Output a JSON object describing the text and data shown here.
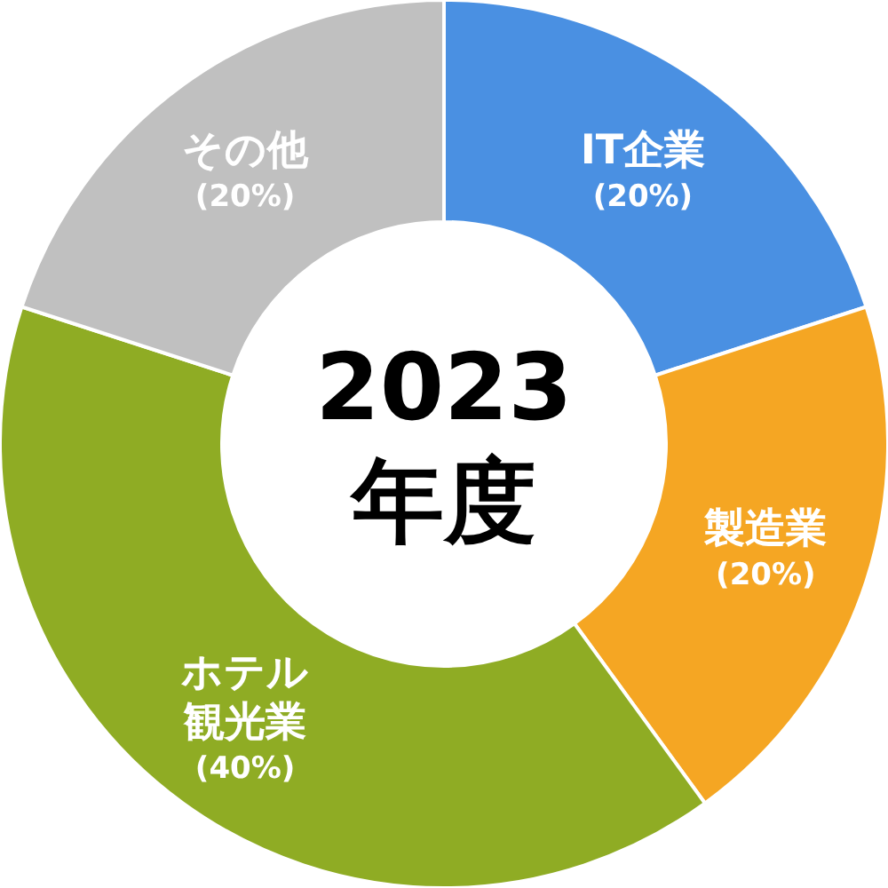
{
  "chart_data": {
    "type": "donut",
    "title": "2023\n年度",
    "categories": [
      "IT企業",
      "製造業",
      "ホテル観光業",
      "その他"
    ],
    "values": [
      20,
      20,
      40,
      20
    ],
    "colors": [
      "#4a90e2",
      "#f5a623",
      "#8fac24",
      "#c0c0c0"
    ],
    "value_labels": [
      "(20%)",
      "(20%)",
      "(40%)",
      "(20%)"
    ]
  }
}
